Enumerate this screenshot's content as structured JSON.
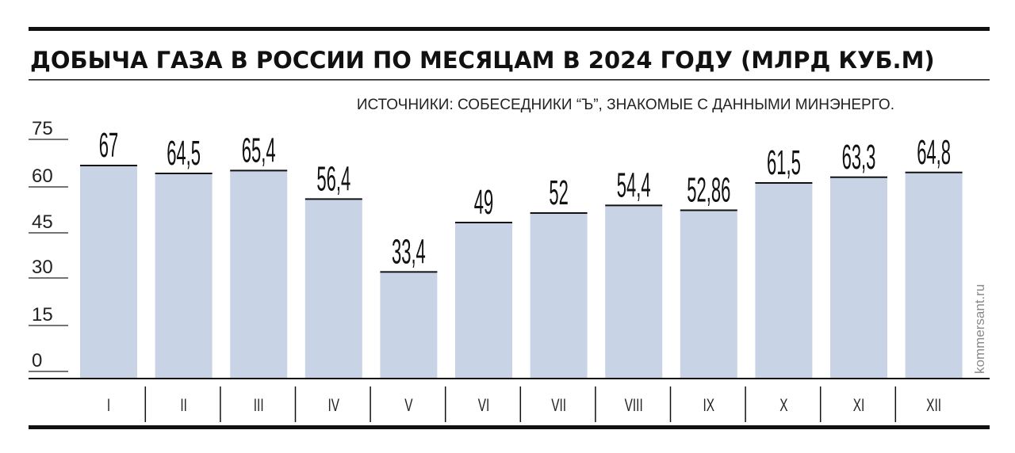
{
  "title": "ДОБЫЧА ГАЗА В РОССИИ ПО МЕСЯЦАМ В 2024 ГОДУ (МЛРД КУБ.М)",
  "source": "ИСТОЧНИКИ: СОБЕСЕДНИКИ “Ъ”, ЗНАКОМЫЕ С ДАННЫМИ МИНЭНЕРГО.",
  "credit": "kommersant.ru",
  "colors": {
    "bar": "#c8d4e6",
    "bar_top": "#111111",
    "rule": "#111111"
  },
  "chart_data": {
    "type": "bar",
    "title": "ДОБЫЧА ГАЗА В РОССИИ ПО МЕСЯЦАМ В 2024 ГОДУ (МЛРД КУБ.М)",
    "categories": [
      "I",
      "II",
      "III",
      "IV",
      "V",
      "VI",
      "VII",
      "VIII",
      "IX",
      "X",
      "XI",
      "XII"
    ],
    "values": [
      67,
      64.5,
      65.4,
      56.4,
      33.4,
      49,
      52,
      54.4,
      52.86,
      61.5,
      63.3,
      64.8
    ],
    "value_labels": [
      "67",
      "64,5",
      "65,4",
      "56,4",
      "33,4",
      "49",
      "52",
      "54,4",
      "52,86",
      "61,5",
      "63,3",
      "64,8"
    ],
    "yticks": [
      "0",
      "15",
      "30",
      "45",
      "60",
      "75"
    ],
    "ylim": [
      0,
      80
    ],
    "grid": false,
    "legend": "none"
  }
}
